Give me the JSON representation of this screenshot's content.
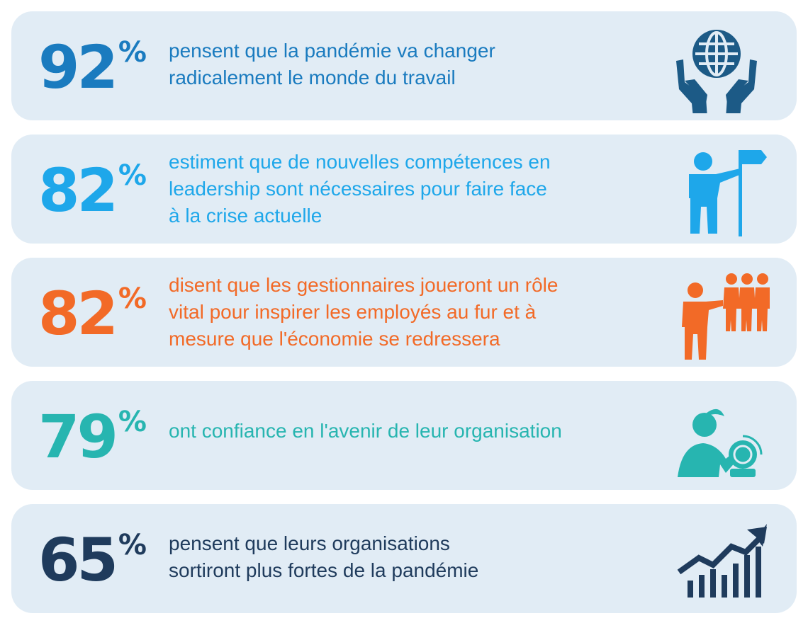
{
  "stats": [
    {
      "value": "92",
      "unit": "%",
      "text": "pensent que la pandémie va changer radicalement le monde du travail",
      "lines": [
        "pensent que la pandémie va changer",
        "radicalement le monde du travail"
      ],
      "color": "#1a7bbf",
      "icon": "globe-in-hands-icon"
    },
    {
      "value": "82",
      "unit": "%",
      "text": "estiment que de nouvelles compétences en leadership sont nécessaires pour faire face à la crise actuelle",
      "lines": [
        "estiment que de nouvelles compétences en",
        "leadership sont nécessaires pour faire face",
        "à la crise actuelle"
      ],
      "color": "#1ea7ea",
      "icon": "leader-with-flag-icon"
    },
    {
      "value": "82",
      "unit": "%",
      "text": "disent que les gestionnaires joueront un rôle vital pour inspirer les employés au fur et à mesure que l'économie se redressera",
      "lines": [
        "disent que les gestionnaires joueront un rôle",
        "vital pour inspirer les employés au fur et à",
        "mesure que l'économie se redressera"
      ],
      "color": "#f26a27",
      "icon": "manager-with-team-icon"
    },
    {
      "value": "79",
      "unit": "%",
      "text": "ont confiance en l'avenir de leur organisation",
      "lines": [
        "ont confiance en l'avenir de leur organisation"
      ],
      "color": "#27b5b0",
      "icon": "person-crystal-ball-icon"
    },
    {
      "value": "65",
      "unit": "%",
      "text": "pensent que leurs organisations sortiront plus fortes de la pandémie",
      "lines": [
        "pensent que leurs organisations",
        "sortiront plus fortes de la pandémie"
      ],
      "color": "#1f3b5c",
      "icon": "growth-bar-chart-icon"
    }
  ]
}
